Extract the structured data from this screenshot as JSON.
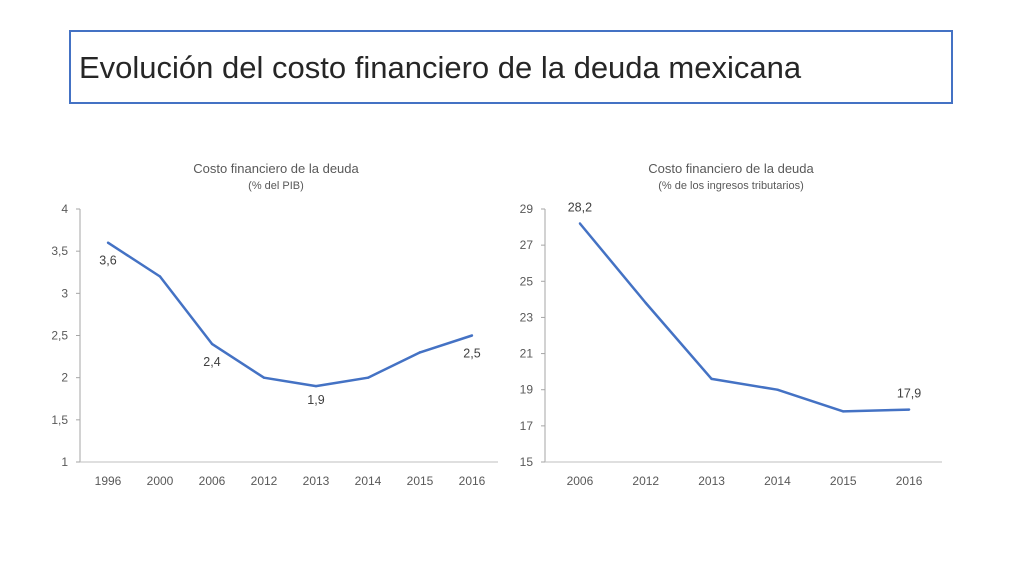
{
  "page": {
    "title": "Evolución del costo financiero de la deuda mexicana"
  },
  "colors": {
    "accent": "#4472C4",
    "text": "#595959"
  },
  "chart_data": [
    {
      "type": "line",
      "title": "Costo financiero de la deuda",
      "subtitle": "(% del PIB)",
      "categories": [
        "1996",
        "2000",
        "2006",
        "2012",
        "2013",
        "2014",
        "2015",
        "2016"
      ],
      "values": [
        3.6,
        3.2,
        2.4,
        2.0,
        1.9,
        2.0,
        2.3,
        2.5
      ],
      "ylim": [
        1,
        4
      ],
      "yticks": [
        "1",
        "1,5",
        "2",
        "2,5",
        "3",
        "3,5",
        "4"
      ],
      "ytick_values": [
        1,
        1.5,
        2,
        2.5,
        3,
        3.5,
        4
      ],
      "data_labels": [
        {
          "index": 0,
          "text": "3,6"
        },
        {
          "index": 2,
          "text": "2,4"
        },
        {
          "index": 4,
          "text": "1,9"
        },
        {
          "index": 7,
          "text": "2,5"
        }
      ],
      "grid": false,
      "color": "#4472C4"
    },
    {
      "type": "line",
      "title": "Costo financiero de la deuda",
      "subtitle": "(% de los ingresos tributarios)",
      "categories": [
        "2006",
        "2012",
        "2013",
        "2014",
        "2015",
        "2016"
      ],
      "values": [
        28.2,
        23.8,
        19.6,
        19.0,
        17.8,
        17.9
      ],
      "ylim": [
        15,
        29
      ],
      "yticks": [
        "15",
        "17",
        "19",
        "21",
        "23",
        "25",
        "27",
        "29"
      ],
      "ytick_values": [
        15,
        17,
        19,
        21,
        23,
        25,
        27,
        29
      ],
      "data_labels": [
        {
          "index": 0,
          "text": "28,2"
        },
        {
          "index": 5,
          "text": "17,9"
        }
      ],
      "grid": false,
      "color": "#4472C4"
    }
  ]
}
